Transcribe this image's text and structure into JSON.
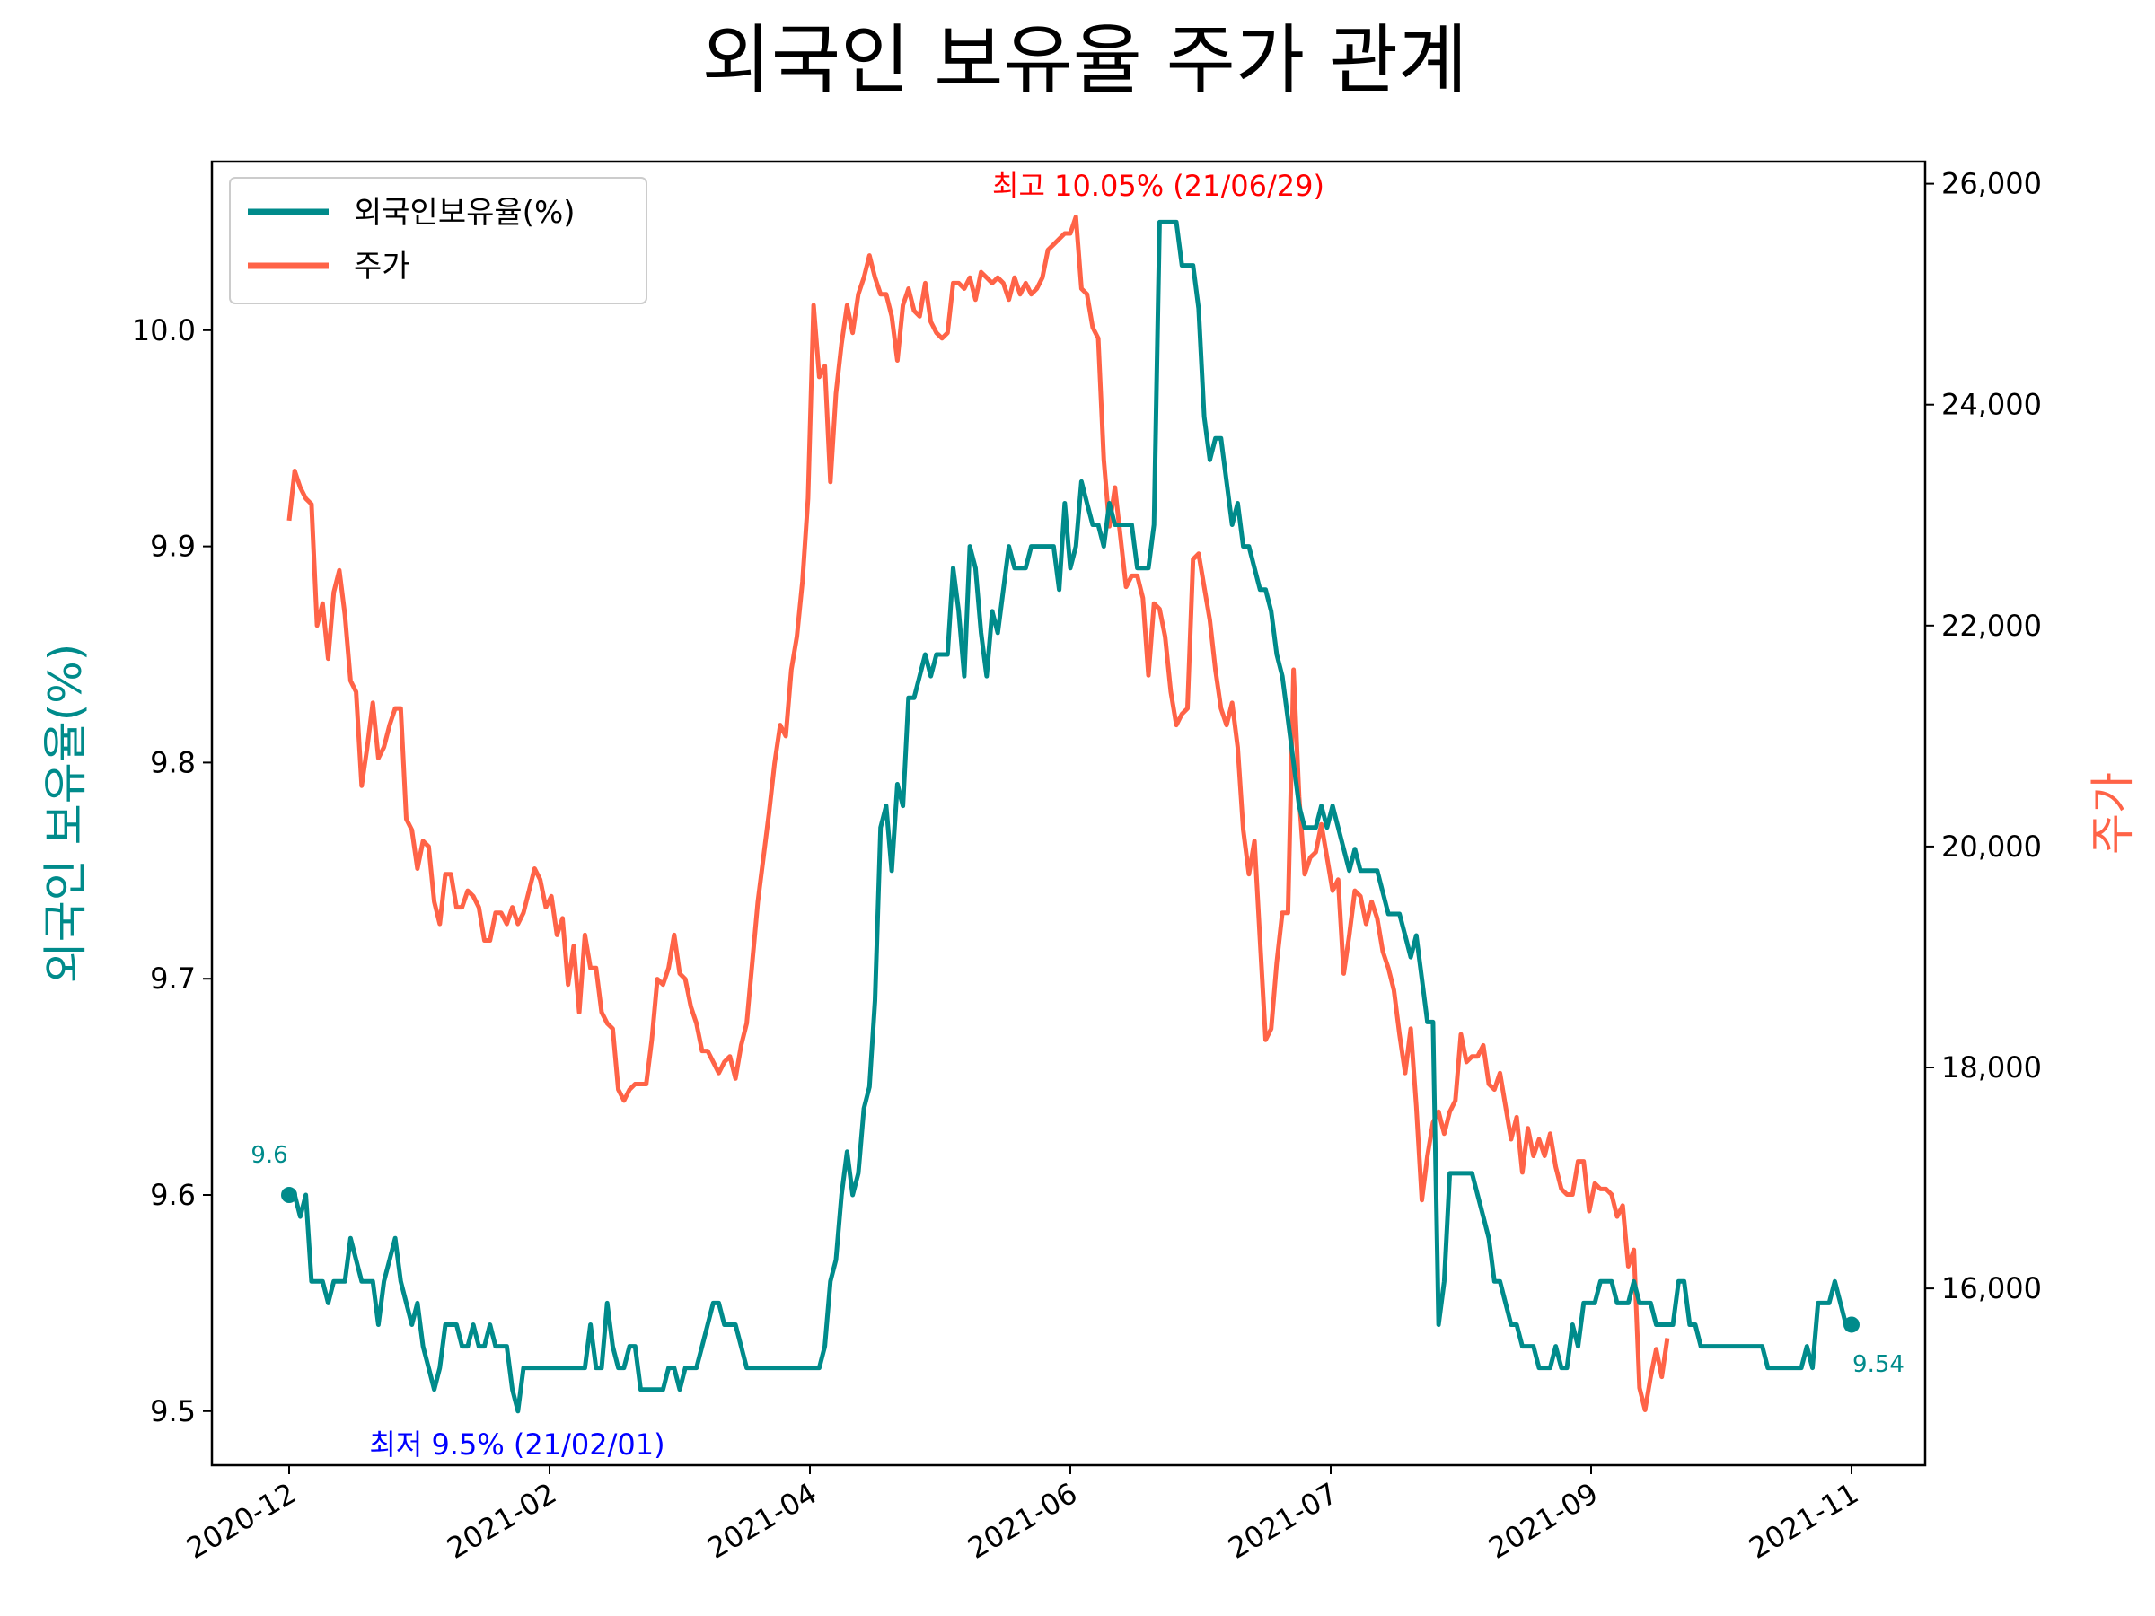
{
  "chart_data": {
    "type": "line",
    "title": "외국인 보유율 주가 관계",
    "ylabel_left": "외국인 보유율(%)",
    "ylabel_right": "주가",
    "x_tick_labels": [
      "2020-12",
      "2021-02",
      "2021-04",
      "2021-06",
      "2021-07",
      "2021-09",
      "2021-11"
    ],
    "ylim_left": [
      9.475,
      10.078
    ],
    "yticks_left": [
      "9.5",
      "9.6",
      "9.7",
      "9.8",
      "9.9",
      "10.0"
    ],
    "ylim_right": [
      14400,
      26200
    ],
    "yticks_right": [
      "16,000",
      "18,000",
      "20,000",
      "22,000",
      "24,000",
      "26,000"
    ],
    "legend": {
      "position": "top-left",
      "entries": [
        "외국인보유율(%)",
        "주가"
      ]
    },
    "colors": {
      "holding": "#008B8B",
      "price": "#FF6347",
      "high": "#FF0000",
      "low": "#0000FF"
    },
    "series": [
      {
        "name": "외국인보유율(%)",
        "axis": "left",
        "values": [
          9.6,
          9.6,
          9.59,
          9.6,
          9.56,
          9.56,
          9.56,
          9.55,
          9.56,
          9.56,
          9.56,
          9.58,
          9.57,
          9.56,
          9.56,
          9.56,
          9.54,
          9.56,
          9.57,
          9.58,
          9.56,
          9.55,
          9.54,
          9.55,
          9.53,
          9.52,
          9.51,
          9.52,
          9.54,
          9.54,
          9.54,
          9.53,
          9.53,
          9.54,
          9.53,
          9.53,
          9.54,
          9.53,
          9.53,
          9.53,
          9.51,
          9.5,
          9.52,
          9.52,
          9.52,
          9.52,
          9.52,
          9.52,
          9.52,
          9.52,
          9.52,
          9.52,
          9.52,
          9.52,
          9.54,
          9.52,
          9.52,
          9.55,
          9.53,
          9.52,
          9.52,
          9.53,
          9.53,
          9.51,
          9.51,
          9.51,
          9.51,
          9.51,
          9.52,
          9.52,
          9.51,
          9.52,
          9.52,
          9.52,
          9.53,
          9.54,
          9.55,
          9.55,
          9.54,
          9.54,
          9.54,
          9.53,
          9.52,
          9.52,
          9.52,
          9.52,
          9.52,
          9.52,
          9.52,
          9.52,
          9.52,
          9.52,
          9.52,
          9.52,
          9.52,
          9.52,
          9.53,
          9.56,
          9.57,
          9.6,
          9.62,
          9.6,
          9.61,
          9.64,
          9.65,
          9.69,
          9.77,
          9.78,
          9.75,
          9.79,
          9.78,
          9.83,
          9.83,
          9.84,
          9.85,
          9.84,
          9.85,
          9.85,
          9.85,
          9.89,
          9.87,
          9.84,
          9.9,
          9.89,
          9.86,
          9.84,
          9.87,
          9.86,
          9.88,
          9.9,
          9.89,
          9.89,
          9.89,
          9.9,
          9.9,
          9.9,
          9.9,
          9.9,
          9.88,
          9.92,
          9.89,
          9.9,
          9.93,
          9.92,
          9.91,
          9.91,
          9.9,
          9.92,
          9.91,
          9.91,
          9.91,
          9.91,
          9.89,
          9.89,
          9.89,
          9.91,
          10.05,
          10.05,
          10.05,
          10.05,
          10.03,
          10.03,
          10.03,
          10.01,
          9.96,
          9.94,
          9.95,
          9.95,
          9.93,
          9.91,
          9.92,
          9.9,
          9.9,
          9.89,
          9.88,
          9.88,
          9.87,
          9.85,
          9.84,
          9.82,
          9.8,
          9.78,
          9.77,
          9.77,
          9.77,
          9.78,
          9.77,
          9.78,
          9.77,
          9.76,
          9.75,
          9.76,
          9.75,
          9.75,
          9.75,
          9.75,
          9.74,
          9.73,
          9.73,
          9.73,
          9.72,
          9.71,
          9.72,
          9.7,
          9.68,
          9.68,
          9.54,
          9.56,
          9.61,
          9.61,
          9.61,
          9.61,
          9.61,
          9.6,
          9.59,
          9.58,
          9.56,
          9.56,
          9.55,
          9.54,
          9.54,
          9.53,
          9.53,
          9.53,
          9.52,
          9.52,
          9.52,
          9.53,
          9.52,
          9.52,
          9.54,
          9.53,
          9.55,
          9.55,
          9.55,
          9.56,
          9.56,
          9.56,
          9.55,
          9.55,
          9.55,
          9.56,
          9.55,
          9.55,
          9.55,
          9.54,
          9.54,
          9.54,
          9.54,
          9.56,
          9.56,
          9.54,
          9.54,
          9.53,
          9.53,
          9.53,
          9.53,
          9.53,
          9.53,
          9.53,
          9.53,
          9.53,
          9.53,
          9.53,
          9.53,
          9.52,
          9.52,
          9.52,
          9.52,
          9.52,
          9.52,
          9.52,
          9.53,
          9.52,
          9.55,
          9.55,
          9.55,
          9.56,
          9.55,
          9.54,
          9.54
        ]
      },
      {
        "name": "주가",
        "axis": "right",
        "values": [
          22950,
          23400,
          23250,
          23150,
          23100,
          22000,
          22200,
          21700,
          22300,
          22500,
          22100,
          21500,
          21400,
          20550,
          20900,
          21300,
          20800,
          20900,
          21100,
          21250,
          21250,
          20250,
          20150,
          19800,
          20050,
          20000,
          19500,
          19300,
          19750,
          19750,
          19450,
          19450,
          19600,
          19550,
          19450,
          19150,
          19150,
          19400,
          19400,
          19300,
          19450,
          19300,
          19400,
          19600,
          19800,
          19700,
          19450,
          19550,
          19200,
          19350,
          18750,
          19100,
          18500,
          19200,
          18900,
          18900,
          18500,
          18400,
          18350,
          17800,
          17700,
          17800,
          17850,
          17850,
          17850,
          18250,
          18800,
          18750,
          18900,
          19200,
          18850,
          18800,
          18550,
          18400,
          18150,
          18150,
          18050,
          17950,
          18050,
          18100,
          17900,
          18200,
          18400,
          18950,
          19500,
          19900,
          20300,
          20750,
          21100,
          21000,
          21600,
          21900,
          22400,
          23150,
          24900,
          24250,
          24350,
          23300,
          24100,
          24550,
          24900,
          24650,
          25000,
          25150,
          25350,
          25150,
          25000,
          25000,
          24800,
          24400,
          24900,
          25050,
          24850,
          24800,
          25100,
          24750,
          24650,
          24600,
          24650,
          25100,
          25100,
          25050,
          25150,
          24950,
          25200,
          25150,
          25100,
          25150,
          25100,
          24950,
          25150,
          25000,
          25100,
          25000,
          25050,
          25150,
          25400,
          25450,
          25500,
          25550,
          25550,
          25700,
          25050,
          25000,
          24700,
          24600,
          23500,
          22900,
          23250,
          22800,
          22350,
          22450,
          22450,
          22250,
          21550,
          22200,
          22150,
          21900,
          21400,
          21100,
          21200,
          21250,
          22600,
          22650,
          22350,
          22050,
          21600,
          21250,
          21100,
          21300,
          20900,
          20150,
          19750,
          20050,
          19150,
          18250,
          18350,
          18950,
          19400,
          19400,
          21600,
          20450,
          19750,
          19900,
          19950,
          20200,
          19900,
          19600,
          19700,
          18850,
          19200,
          19600,
          19550,
          19300,
          19500,
          19350,
          19050,
          18900,
          18700,
          18300,
          17950,
          18350,
          17650,
          16800,
          17200,
          17500,
          17600,
          17400,
          17600,
          17700,
          18300,
          18050,
          18100,
          18100,
          18200,
          17850,
          17800,
          17950,
          17650,
          17350,
          17550,
          17050,
          17450,
          17200,
          17350,
          17200,
          17400,
          17100,
          16900,
          16850,
          16850,
          17150,
          17150,
          16700,
          16950,
          16900,
          16900,
          16850,
          16650,
          16750,
          16200,
          16350,
          15100,
          14900,
          15200,
          15450,
          15200,
          15550
        ]
      }
    ],
    "annotations": {
      "high": "최고 10.05% (21/06/29)",
      "low": "최저 9.5% (21/02/01)",
      "start_value": "9.6",
      "end_value": "9.54"
    }
  }
}
